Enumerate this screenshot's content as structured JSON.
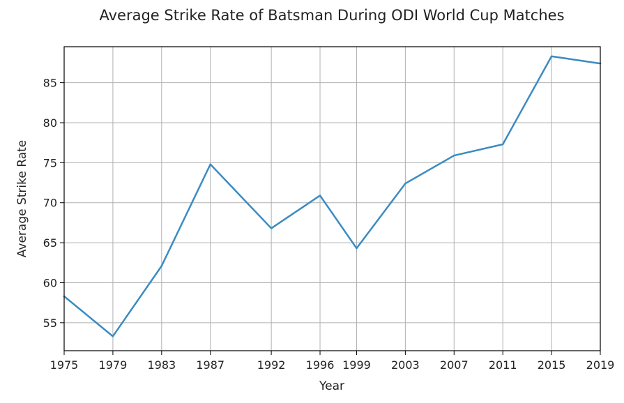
{
  "chart_data": {
    "type": "line",
    "title": "Average Strike Rate of Batsman During ODI World Cup Matches",
    "xlabel": "Year",
    "ylabel": "Average Strike Rate",
    "x": [
      1975,
      1979,
      1983,
      1987,
      1992,
      1996,
      1999,
      2003,
      2007,
      2011,
      2015,
      2019
    ],
    "x_ticks": [
      "1975",
      "1979",
      "1983",
      "1987",
      "1992",
      "1996",
      "1999",
      "2003",
      "2007",
      "2011",
      "2015",
      "2019"
    ],
    "y_ticks": [
      55,
      60,
      65,
      70,
      75,
      80,
      85
    ],
    "series": [
      {
        "values": [
          58.3,
          53.3,
          62.1,
          74.8,
          66.8,
          70.9,
          64.3,
          72.4,
          75.9,
          77.3,
          88.3,
          87.4
        ],
        "color": "#3b8bc2"
      }
    ],
    "ylim": [
      51.5,
      89.5
    ],
    "xlim": [
      1975,
      2019
    ],
    "grid": true,
    "x_axis_scale": "categorical"
  }
}
